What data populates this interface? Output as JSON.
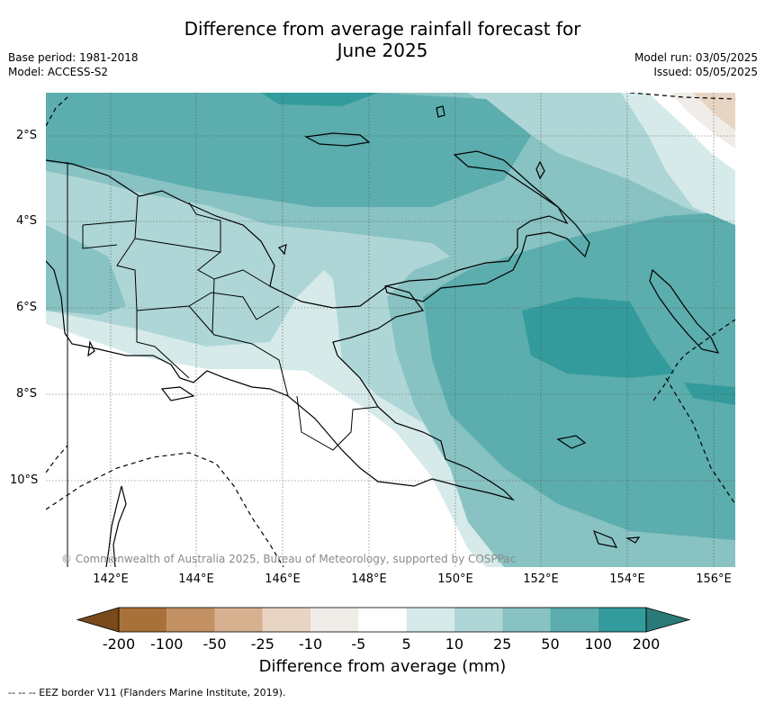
{
  "title_line1": "Difference from average rainfall forecast for",
  "title_line2": "June 2025",
  "meta_left": [
    "Base period: 1981-2018",
    "Model: ACCESS-S2"
  ],
  "meta_right": [
    "Model run: 03/05/2025",
    "Issued: 05/05/2025"
  ],
  "lat_labels": [
    "2°S",
    "4°S",
    "6°S",
    "8°S",
    "10°S"
  ],
  "lon_labels": [
    "142°E",
    "144°E",
    "146°E",
    "148°E",
    "150°E",
    "152°E",
    "154°E",
    "156°E"
  ],
  "colorbar": {
    "ticks": [
      "-200",
      "-100",
      "-50",
      "-25",
      "-10",
      "-5",
      "5",
      "10",
      "25",
      "50",
      "100",
      "200"
    ],
    "colors": [
      "#7a4a1c",
      "#a9713a",
      "#c29062",
      "#d6b08f",
      "#e8d4c2",
      "#f0ece8",
      "#ffffff",
      "#d6eaea",
      "#afd6d6",
      "#88c2c2",
      "#5cadad",
      "#339b9b",
      "#2a7a78"
    ],
    "title": "Difference from average (mm)"
  },
  "credit": "© Commonwealth of Australia 2025, Bureau of Meteorology, supported by COSPPac",
  "footer": "--  --  -- EEZ border V11 (Flanders Marine Institute, 2019)."
}
